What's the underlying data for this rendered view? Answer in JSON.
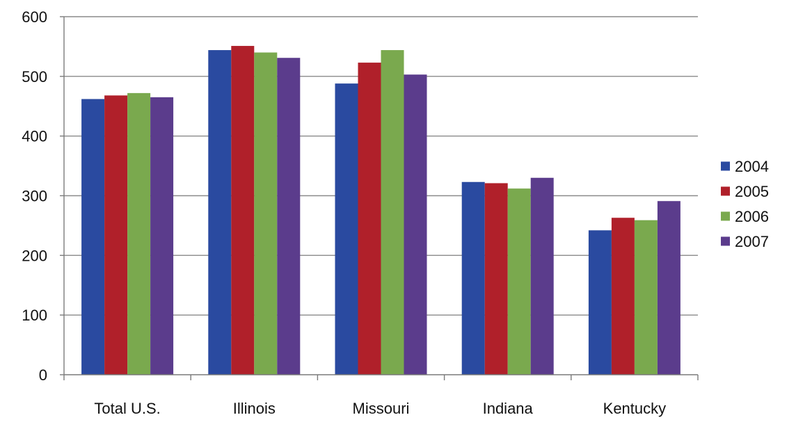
{
  "chart_data": {
    "type": "bar",
    "title": "",
    "xlabel": "",
    "ylabel": "",
    "ylim": [
      0,
      600
    ],
    "yticks": [
      0,
      100,
      200,
      300,
      400,
      500,
      600
    ],
    "grid": true,
    "legend_position": "right",
    "categories": [
      "Total U.S.",
      "Illinois",
      "Missouri",
      "Indiana",
      "Kentucky"
    ],
    "series": [
      {
        "name": "2004",
        "color": "#2a4aa0",
        "values": [
          462,
          544,
          488,
          323,
          242
        ]
      },
      {
        "name": "2005",
        "color": "#b0202a",
        "values": [
          468,
          551,
          523,
          321,
          263
        ]
      },
      {
        "name": "2006",
        "color": "#7aa94e",
        "values": [
          472,
          540,
          544,
          312,
          259
        ]
      },
      {
        "name": "2007",
        "color": "#5b3c8c",
        "values": [
          465,
          531,
          503,
          330,
          291
        ]
      }
    ]
  }
}
